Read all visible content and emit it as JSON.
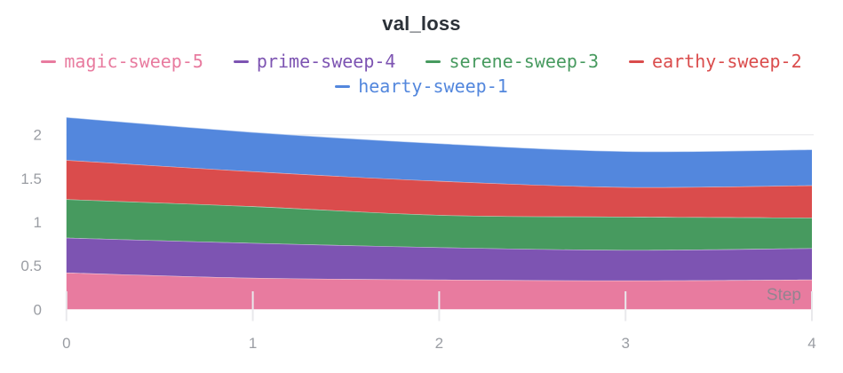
{
  "title": "val_loss",
  "legend": {
    "items": [
      {
        "label": "magic-sweep-5",
        "color": "#E87B9F"
      },
      {
        "label": "prime-sweep-4",
        "color": "#7D54B2"
      },
      {
        "label": "serene-sweep-3",
        "color": "#479A5F"
      },
      {
        "label": "earthy-sweep-2",
        "color": "#DA4C4C"
      },
      {
        "label": "hearty-sweep-1",
        "color": "#5387DD"
      }
    ]
  },
  "chart_data": {
    "type": "area",
    "stacked": true,
    "title": "val_loss",
    "xlabel": "Step",
    "ylabel": "",
    "x": [
      0,
      1,
      2,
      3,
      4
    ],
    "x_tick_labels": [
      "0",
      "1",
      "2",
      "3",
      "4"
    ],
    "y_ticks": [
      0,
      0.5,
      1,
      1.5,
      2
    ],
    "y_tick_labels": [
      "0",
      "0.5",
      "1",
      "1.5",
      "2"
    ],
    "xlim": [
      0,
      4
    ],
    "ylim": [
      0,
      2.25
    ],
    "grid": "single horizontal gridline visible at y=2",
    "legend_position": "top",
    "series": [
      {
        "name": "magic-sweep-5",
        "color": "#E87B9F",
        "values": [
          0.42,
          0.36,
          0.34,
          0.33,
          0.34
        ]
      },
      {
        "name": "prime-sweep-4",
        "color": "#7D54B2",
        "values": [
          0.4,
          0.4,
          0.37,
          0.35,
          0.36
        ]
      },
      {
        "name": "serene-sweep-3",
        "color": "#479A5F",
        "values": [
          0.44,
          0.42,
          0.37,
          0.38,
          0.35
        ]
      },
      {
        "name": "earthy-sweep-2",
        "color": "#DA4C4C",
        "values": [
          0.45,
          0.4,
          0.39,
          0.34,
          0.37
        ]
      },
      {
        "name": "hearty-sweep-1",
        "color": "#5387DD",
        "values": [
          0.49,
          0.45,
          0.43,
          0.41,
          0.41
        ]
      }
    ],
    "stacking_order_note": "series listed bottom-to-top of the stack",
    "colors": {
      "title_text": "#2b3138",
      "axis_text": "#9a9da3",
      "gridline": "#ededef",
      "tick": "#e9e9ec",
      "background": "#ffffff"
    }
  }
}
